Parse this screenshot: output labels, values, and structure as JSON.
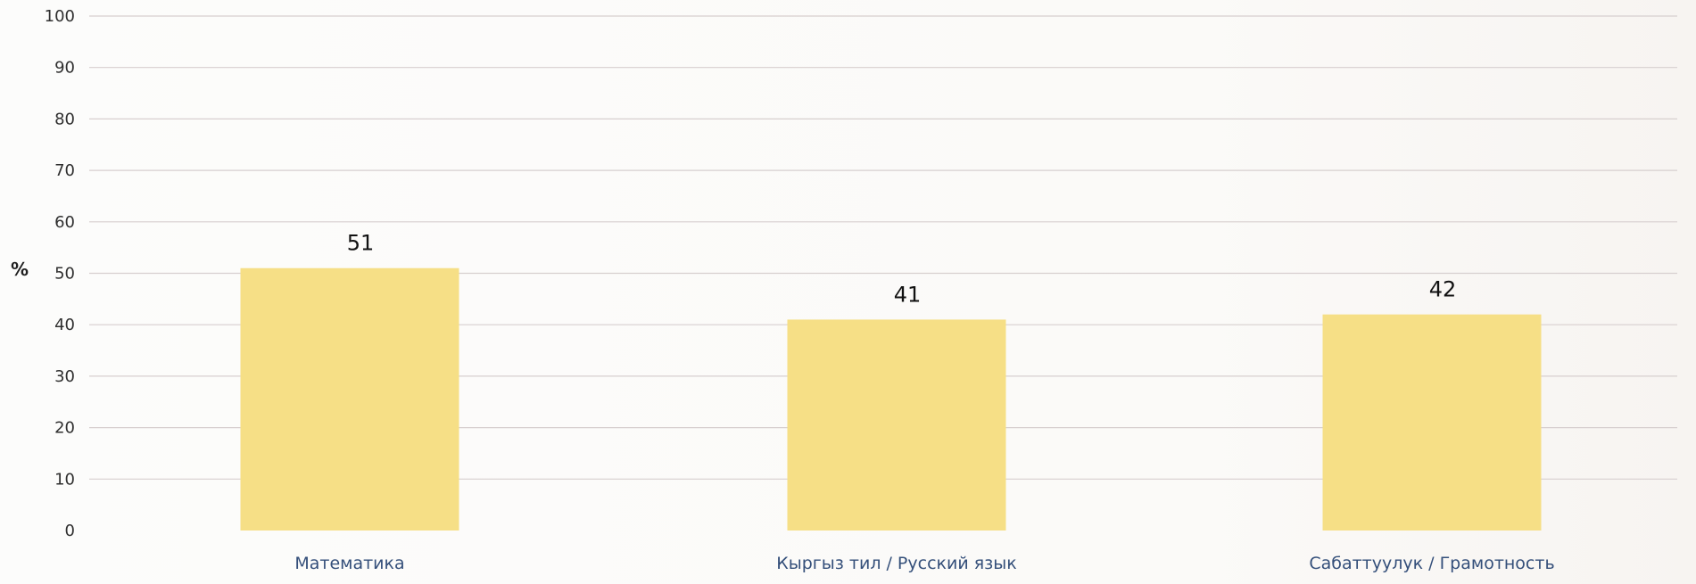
{
  "chart_data": {
    "type": "bar",
    "categories": [
      "Математика",
      "Кыргыз тил / Русский язык",
      "Сабаттуулук / Грамотность"
    ],
    "values": [
      51,
      41,
      42
    ],
    "title": "",
    "xlabel": "",
    "ylabel": "%",
    "ylim": [
      0,
      100
    ],
    "yticks": [
      0,
      10,
      20,
      30,
      40,
      50,
      60,
      70,
      80,
      90,
      100
    ],
    "grid": true,
    "bar_color": "#f6df86"
  }
}
